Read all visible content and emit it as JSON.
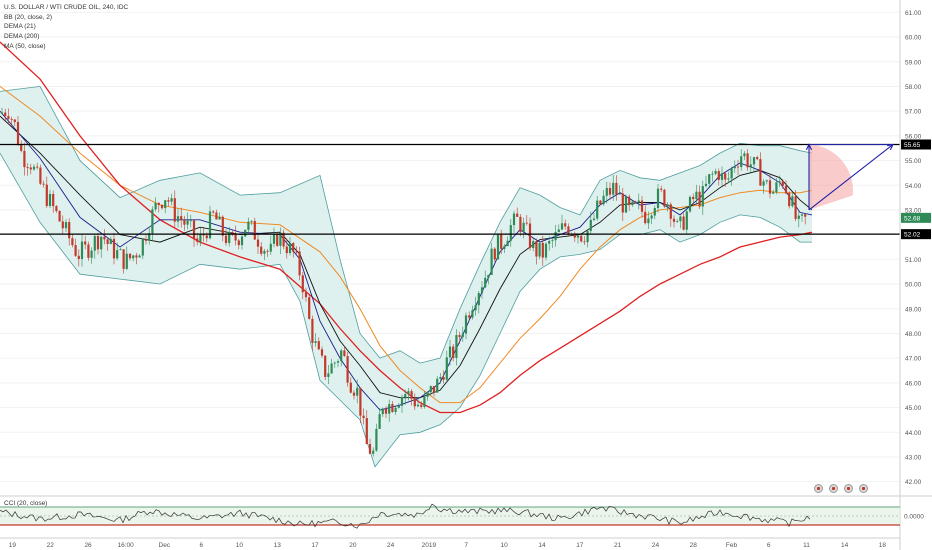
{
  "header": {
    "symbol": "U.S. DOLLAR / WTI CRUDE OIL, 240, IDC",
    "indicators": [
      "BB (20, close, 2)",
      "DEMA (21)",
      "DEMA (200)",
      "MA (50, close)"
    ]
  },
  "oscillator": {
    "label": "CCI (20, close)",
    "level_label": "0.0000"
  },
  "price_labels": {
    "upper": "55.65",
    "lower": "52.02",
    "last": "52.68"
  },
  "colors": {
    "up": "#2e8b57",
    "down": "#c0392b",
    "bb": "#4f9e9e",
    "bb_fill": "#d9efec",
    "dema21": "#1c1c8c",
    "dema200": "#e02020",
    "ma50": "#f08a24",
    "ma_black": "#111111",
    "arrow": "#2222aa",
    "fan": "#f4a0a0"
  },
  "chart_data": {
    "type": "candlestick",
    "y_axis": {
      "min": 41.5,
      "max": 61.5,
      "ticks": [
        42,
        43,
        44,
        45,
        46,
        47,
        48,
        49,
        50,
        51,
        52,
        53,
        54,
        55,
        56,
        57,
        58,
        59,
        60,
        61
      ]
    },
    "x_ticks": [
      "19",
      "22",
      "26",
      "16:00",
      "Dec",
      "6",
      "10",
      "13",
      "17",
      "20",
      "24",
      "2019",
      "7",
      "10",
      "14",
      "17",
      "21",
      "24",
      "28",
      "Feb",
      "6",
      "11",
      "14",
      "18"
    ],
    "horizontal_levels": [
      55.65,
      52.02
    ],
    "price_path": [
      [
        0,
        56.9
      ],
      [
        8,
        57.1
      ],
      [
        15,
        56.4
      ],
      [
        22,
        55.2
      ],
      [
        30,
        55.0
      ],
      [
        38,
        54.2
      ],
      [
        46,
        53.6
      ],
      [
        54,
        53.0
      ],
      [
        62,
        52.4
      ],
      [
        70,
        51.8
      ],
      [
        78,
        51.2
      ],
      [
        86,
        51.4
      ],
      [
        94,
        51.7
      ],
      [
        102,
        52.0
      ],
      [
        110,
        51.5
      ],
      [
        118,
        51.2
      ],
      [
        126,
        50.9
      ],
      [
        134,
        51.2
      ],
      [
        142,
        51.6
      ],
      [
        150,
        52.6
      ],
      [
        158,
        53.3
      ],
      [
        166,
        53.6
      ],
      [
        174,
        52.9
      ],
      [
        182,
        52.6
      ],
      [
        190,
        52.2
      ],
      [
        198,
        51.6
      ],
      [
        206,
        52.2
      ],
      [
        214,
        52.8
      ],
      [
        222,
        52.1
      ],
      [
        230,
        51.7
      ],
      [
        238,
        51.9
      ],
      [
        246,
        52.4
      ],
      [
        254,
        52.1
      ],
      [
        262,
        51.6
      ],
      [
        270,
        51.2
      ],
      [
        278,
        52.0
      ],
      [
        286,
        51.6
      ],
      [
        294,
        51.2
      ],
      [
        302,
        50.2
      ],
      [
        310,
        48.3
      ],
      [
        318,
        47.1
      ],
      [
        326,
        46.4
      ],
      [
        334,
        46.8
      ],
      [
        342,
        47.3
      ],
      [
        350,
        46.1
      ],
      [
        358,
        45.6
      ],
      [
        366,
        43.5
      ],
      [
        374,
        43.1
      ],
      [
        382,
        45.2
      ],
      [
        390,
        45.1
      ],
      [
        398,
        45.4
      ],
      [
        406,
        45.6
      ],
      [
        414,
        45.3
      ],
      [
        422,
        45.0
      ],
      [
        430,
        45.6
      ],
      [
        438,
        46.0
      ],
      [
        446,
        46.8
      ],
      [
        454,
        47.3
      ],
      [
        462,
        48.2
      ],
      [
        470,
        49.1
      ],
      [
        478,
        49.8
      ],
      [
        486,
        50.4
      ],
      [
        494,
        51.4
      ],
      [
        502,
        51.7
      ],
      [
        510,
        52.3
      ],
      [
        518,
        52.6
      ],
      [
        526,
        52.1
      ],
      [
        534,
        51.4
      ],
      [
        542,
        51.2
      ],
      [
        550,
        51.6
      ],
      [
        558,
        52.0
      ],
      [
        566,
        52.4
      ],
      [
        574,
        52.2
      ],
      [
        582,
        52.0
      ],
      [
        590,
        52.2
      ],
      [
        598,
        53.1
      ],
      [
        606,
        53.6
      ],
      [
        614,
        53.9
      ],
      [
        622,
        53.3
      ],
      [
        630,
        52.9
      ],
      [
        638,
        53.1
      ],
      [
        646,
        52.8
      ],
      [
        654,
        53.4
      ],
      [
        662,
        53.6
      ],
      [
        670,
        53.2
      ],
      [
        678,
        52.1
      ],
      [
        686,
        52.8
      ],
      [
        694,
        53.5
      ],
      [
        702,
        53.5
      ],
      [
        710,
        54.3
      ],
      [
        718,
        54.6
      ],
      [
        726,
        54.0
      ],
      [
        734,
        54.9
      ],
      [
        742,
        55.3
      ],
      [
        750,
        54.9
      ],
      [
        758,
        54.6
      ],
      [
        766,
        54.0
      ],
      [
        774,
        53.7
      ],
      [
        782,
        54.3
      ],
      [
        790,
        53.5
      ],
      [
        798,
        52.3
      ],
      [
        806,
        52.6
      ],
      [
        812,
        52.7
      ]
    ],
    "bb_upper": [
      [
        0,
        57.8
      ],
      [
        40,
        58.0
      ],
      [
        80,
        55.0
      ],
      [
        120,
        53.5
      ],
      [
        160,
        54.2
      ],
      [
        200,
        54.5
      ],
      [
        240,
        53.6
      ],
      [
        280,
        53.7
      ],
      [
        320,
        54.4
      ],
      [
        340,
        51.0
      ],
      [
        360,
        48.0
      ],
      [
        380,
        47.0
      ],
      [
        400,
        47.3
      ],
      [
        420,
        46.8
      ],
      [
        440,
        47.0
      ],
      [
        460,
        49.0
      ],
      [
        480,
        50.8
      ],
      [
        500,
        52.5
      ],
      [
        520,
        53.9
      ],
      [
        540,
        53.6
      ],
      [
        560,
        53.1
      ],
      [
        580,
        52.8
      ],
      [
        600,
        54.2
      ],
      [
        620,
        54.6
      ],
      [
        640,
        54.3
      ],
      [
        660,
        54.2
      ],
      [
        680,
        54.5
      ],
      [
        700,
        54.8
      ],
      [
        720,
        55.3
      ],
      [
        740,
        55.7
      ],
      [
        760,
        55.6
      ],
      [
        780,
        55.6
      ],
      [
        800,
        55.4
      ],
      [
        812,
        55.3
      ]
    ],
    "bb_lower": [
      [
        0,
        55.3
      ],
      [
        40,
        52.5
      ],
      [
        80,
        50.4
      ],
      [
        120,
        50.2
      ],
      [
        160,
        50.0
      ],
      [
        200,
        50.8
      ],
      [
        240,
        50.6
      ],
      [
        280,
        50.8
      ],
      [
        300,
        49.3
      ],
      [
        320,
        46.1
      ],
      [
        340,
        45.3
      ],
      [
        360,
        44.5
      ],
      [
        375,
        42.6
      ],
      [
        400,
        43.9
      ],
      [
        420,
        44.0
      ],
      [
        440,
        44.3
      ],
      [
        460,
        45.0
      ],
      [
        480,
        46.3
      ],
      [
        500,
        48.0
      ],
      [
        520,
        49.7
      ],
      [
        540,
        50.6
      ],
      [
        560,
        51.1
      ],
      [
        580,
        51.2
      ],
      [
        600,
        51.4
      ],
      [
        620,
        52.0
      ],
      [
        640,
        52.0
      ],
      [
        660,
        52.2
      ],
      [
        680,
        51.7
      ],
      [
        700,
        52.0
      ],
      [
        720,
        52.5
      ],
      [
        740,
        52.8
      ],
      [
        760,
        52.7
      ],
      [
        780,
        52.3
      ],
      [
        800,
        51.7
      ],
      [
        812,
        51.7
      ]
    ],
    "ma_black": [
      [
        0,
        56.8
      ],
      [
        40,
        55.3
      ],
      [
        80,
        53.6
      ],
      [
        120,
        52.0
      ],
      [
        160,
        51.7
      ],
      [
        200,
        52.3
      ],
      [
        240,
        52.0
      ],
      [
        280,
        52.1
      ],
      [
        300,
        51.2
      ],
      [
        320,
        49.2
      ],
      [
        340,
        47.7
      ],
      [
        360,
        46.7
      ],
      [
        380,
        45.6
      ],
      [
        400,
        45.4
      ],
      [
        420,
        45.4
      ],
      [
        440,
        45.7
      ],
      [
        460,
        46.7
      ],
      [
        480,
        48.2
      ],
      [
        500,
        49.8
      ],
      [
        520,
        51.2
      ],
      [
        540,
        51.8
      ],
      [
        560,
        51.9
      ],
      [
        580,
        52.0
      ],
      [
        600,
        52.5
      ],
      [
        620,
        53.2
      ],
      [
        640,
        53.3
      ],
      [
        660,
        53.3
      ],
      [
        680,
        53.0
      ],
      [
        700,
        53.3
      ],
      [
        720,
        53.9
      ],
      [
        740,
        54.4
      ],
      [
        760,
        54.6
      ],
      [
        780,
        54.3
      ],
      [
        800,
        53.4
      ],
      [
        812,
        53.0
      ]
    ],
    "dema21": [
      [
        0,
        57.0
      ],
      [
        40,
        55.1
      ],
      [
        80,
        52.7
      ],
      [
        120,
        51.5
      ],
      [
        160,
        52.6
      ],
      [
        200,
        52.6
      ],
      [
        240,
        52.1
      ],
      [
        280,
        52.0
      ],
      [
        300,
        51.0
      ],
      [
        320,
        48.5
      ],
      [
        340,
        47.0
      ],
      [
        360,
        45.8
      ],
      [
        380,
        44.9
      ],
      [
        400,
        45.1
      ],
      [
        420,
        45.4
      ],
      [
        440,
        46.0
      ],
      [
        460,
        47.7
      ],
      [
        480,
        49.5
      ],
      [
        500,
        51.3
      ],
      [
        520,
        52.2
      ],
      [
        540,
        51.7
      ],
      [
        560,
        52.0
      ],
      [
        580,
        52.3
      ],
      [
        600,
        53.2
      ],
      [
        620,
        53.7
      ],
      [
        640,
        53.2
      ],
      [
        660,
        53.3
      ],
      [
        680,
        52.8
      ],
      [
        700,
        53.5
      ],
      [
        720,
        54.4
      ],
      [
        740,
        54.9
      ],
      [
        760,
        54.6
      ],
      [
        780,
        54.1
      ],
      [
        800,
        52.9
      ],
      [
        812,
        52.8
      ]
    ],
    "ma50": [
      [
        0,
        58.0
      ],
      [
        40,
        56.8
      ],
      [
        80,
        55.3
      ],
      [
        120,
        54.0
      ],
      [
        160,
        53.2
      ],
      [
        200,
        52.9
      ],
      [
        240,
        52.5
      ],
      [
        280,
        52.4
      ],
      [
        320,
        51.3
      ],
      [
        340,
        50.3
      ],
      [
        360,
        49.0
      ],
      [
        380,
        47.5
      ],
      [
        400,
        46.5
      ],
      [
        420,
        45.8
      ],
      [
        440,
        45.2
      ],
      [
        460,
        45.2
      ],
      [
        480,
        45.8
      ],
      [
        500,
        46.8
      ],
      [
        520,
        47.8
      ],
      [
        540,
        48.6
      ],
      [
        560,
        49.5
      ],
      [
        580,
        50.6
      ],
      [
        600,
        51.5
      ],
      [
        620,
        52.2
      ],
      [
        640,
        52.7
      ],
      [
        660,
        53.0
      ],
      [
        680,
        53.1
      ],
      [
        700,
        53.2
      ],
      [
        720,
        53.5
      ],
      [
        740,
        53.7
      ],
      [
        760,
        53.8
      ],
      [
        780,
        53.7
      ],
      [
        800,
        53.7
      ],
      [
        812,
        53.8
      ]
    ],
    "dema200": [
      [
        0,
        59.8
      ],
      [
        40,
        58.3
      ],
      [
        80,
        56.0
      ],
      [
        120,
        54.0
      ],
      [
        160,
        52.6
      ],
      [
        200,
        51.7
      ],
      [
        240,
        51.1
      ],
      [
        280,
        50.6
      ],
      [
        320,
        49.2
      ],
      [
        340,
        48.2
      ],
      [
        360,
        47.3
      ],
      [
        380,
        46.5
      ],
      [
        400,
        45.8
      ],
      [
        420,
        45.2
      ],
      [
        440,
        44.8
      ],
      [
        460,
        44.8
      ],
      [
        480,
        45.1
      ],
      [
        500,
        45.6
      ],
      [
        520,
        46.3
      ],
      [
        540,
        46.9
      ],
      [
        560,
        47.4
      ],
      [
        580,
        47.9
      ],
      [
        600,
        48.4
      ],
      [
        620,
        48.9
      ],
      [
        640,
        49.5
      ],
      [
        660,
        50.0
      ],
      [
        680,
        50.4
      ],
      [
        700,
        50.8
      ],
      [
        720,
        51.1
      ],
      [
        740,
        51.5
      ],
      [
        760,
        51.7
      ],
      [
        780,
        51.9
      ],
      [
        800,
        52.0
      ],
      [
        812,
        52.1
      ]
    ],
    "drawings": {
      "triangle": [
        [
          809,
          55.65
        ],
        [
          893,
          55.65
        ],
        [
          809,
          53.0
        ]
      ],
      "fan_origin": [
        809,
        53.0
      ]
    },
    "cci": [
      [
        0,
        0.3
      ],
      [
        40,
        -0.2
      ],
      [
        80,
        0.1
      ],
      [
        120,
        -0.3
      ],
      [
        150,
        0.4
      ],
      [
        200,
        -0.2
      ],
      [
        240,
        0.2
      ],
      [
        280,
        -0.3
      ],
      [
        300,
        -0.6
      ],
      [
        340,
        -0.4
      ],
      [
        360,
        -0.7
      ],
      [
        380,
        0.2
      ],
      [
        420,
        0.1
      ],
      [
        432,
        0.9
      ],
      [
        440,
        0.5
      ],
      [
        470,
        0.3
      ],
      [
        500,
        0.4
      ],
      [
        520,
        0.3
      ],
      [
        560,
        -0.2
      ],
      [
        600,
        0.6
      ],
      [
        620,
        0.3
      ],
      [
        660,
        -0.2
      ],
      [
        680,
        -0.5
      ],
      [
        720,
        0.3
      ],
      [
        760,
        -0.2
      ],
      [
        790,
        -0.5
      ],
      [
        812,
        0.0
      ]
    ]
  }
}
